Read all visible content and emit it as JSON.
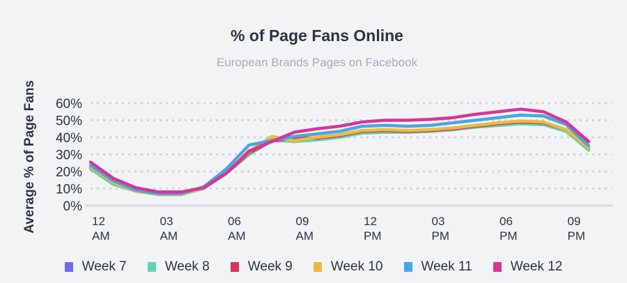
{
  "chart_data": {
    "type": "line",
    "title": "% of Page Fans Online",
    "subtitle": "European Brands Pages on Facebook",
    "xlabel": "",
    "ylabel": "Average % of Page Fans",
    "ylim": [
      0,
      60
    ],
    "yticks": [
      "0%",
      "10%",
      "20%",
      "30%",
      "40%",
      "50%",
      "60%"
    ],
    "ytick_values": [
      0,
      10,
      20,
      30,
      40,
      50,
      60
    ],
    "x": [
      0,
      1,
      2,
      3,
      4,
      5,
      6,
      7,
      8,
      9,
      10,
      11,
      12,
      13,
      14,
      15,
      16,
      17,
      18,
      19,
      20,
      21,
      22,
      23
    ],
    "xticks": [
      {
        "hour": 0,
        "line1": "12",
        "line2": "AM"
      },
      {
        "hour": 3,
        "line1": "03",
        "line2": "AM"
      },
      {
        "hour": 6,
        "line1": "06",
        "line2": "AM"
      },
      {
        "hour": 9,
        "line1": "09",
        "line2": "AM"
      },
      {
        "hour": 12,
        "line1": "12",
        "line2": "PM"
      },
      {
        "hour": 15,
        "line1": "03",
        "line2": "PM"
      },
      {
        "hour": 18,
        "line1": "06",
        "line2": "PM"
      },
      {
        "hour": 21,
        "line1": "09",
        "line2": "PM"
      }
    ],
    "grid": true,
    "legend_position": "bottom",
    "series": [
      {
        "name": "Week 7",
        "color": "#6b6fe6",
        "values": [
          22,
          13,
          8.5,
          6.5,
          7,
          10.5,
          19,
          30,
          38,
          38,
          39,
          40.5,
          42.5,
          43,
          43,
          43.5,
          44.5,
          46,
          47,
          48,
          47.5,
          44,
          33,
          null
        ]
      },
      {
        "name": "Week 8",
        "color": "#5fd3b4",
        "values": [
          21.5,
          12.5,
          8.5,
          6.5,
          6.5,
          10,
          19,
          30,
          38.5,
          37.5,
          38.5,
          40,
          42.5,
          43,
          43,
          43.5,
          44.5,
          46,
          47,
          48,
          47.5,
          43.5,
          32.5,
          null
        ]
      },
      {
        "name": "Week 9",
        "color": "#d6345a",
        "values": [
          22.5,
          13.5,
          9,
          7,
          7,
          10.5,
          19,
          31,
          38,
          39.5,
          39.5,
          41,
          43.5,
          44,
          43.5,
          44,
          45,
          46.5,
          48,
          49,
          48.5,
          44.5,
          33.5,
          null
        ]
      },
      {
        "name": "Week 10",
        "color": "#e9bc3c",
        "values": [
          22.5,
          13.5,
          8.5,
          6.5,
          6.5,
          10.5,
          19.5,
          31.5,
          40.5,
          38,
          40,
          41.5,
          44,
          44.5,
          44,
          44.5,
          45.5,
          47,
          48.5,
          49.5,
          49,
          44.5,
          33.5,
          null
        ]
      },
      {
        "name": "Week 11",
        "color": "#47a7e4",
        "values": [
          23.5,
          14.5,
          9,
          7,
          7,
          11,
          21.5,
          35.5,
          38,
          40.5,
          42,
          43.5,
          46.5,
          47,
          46.5,
          47,
          48.5,
          50,
          51.5,
          53,
          52.5,
          47.5,
          35,
          null
        ]
      },
      {
        "name": "Week 12",
        "color": "#d73595",
        "values": [
          25.5,
          16,
          10.5,
          8,
          8,
          10.5,
          19,
          32,
          37.5,
          43,
          45,
          46.5,
          49,
          50,
          50,
          50.5,
          51.5,
          53.5,
          55,
          56.5,
          55,
          49,
          37.5,
          null
        ]
      }
    ]
  }
}
